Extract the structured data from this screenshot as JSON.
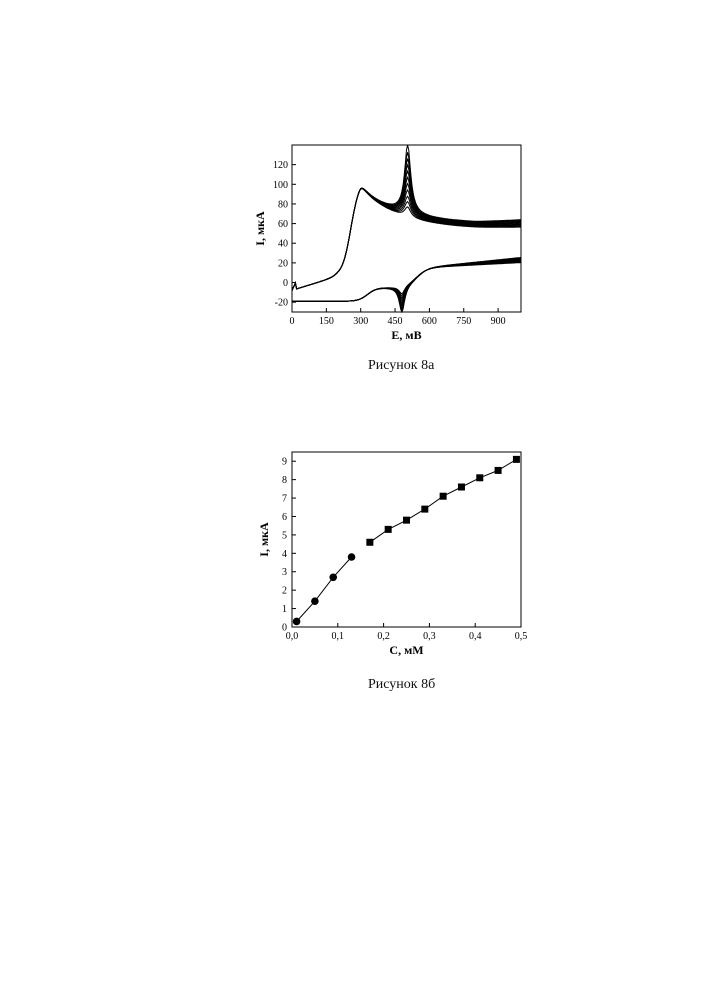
{
  "figures": [
    {
      "caption": "Рисунок 8а"
    },
    {
      "caption": "Рисунок 8б"
    }
  ],
  "chart_data": [
    {
      "type": "line",
      "xlabel": "E, мВ",
      "ylabel": "I, мкА",
      "xlim": [
        0,
        1000
      ],
      "ylim": [
        -30,
        140
      ],
      "xticks": [
        "0",
        "150",
        "300",
        "450",
        "600",
        "750",
        "900"
      ],
      "yticks": [
        "-20",
        "0",
        "20",
        "40",
        "60",
        "80",
        "100",
        "120"
      ],
      "grid": false,
      "series_description_peak_heights": {
        "peak2_anodic": [
          70,
          75,
          80,
          86,
          92,
          98,
          104,
          110,
          116,
          122,
          130
        ],
        "peak2_cathodic": [
          -8,
          -10,
          -12,
          -13,
          -15,
          -17,
          -19,
          -21,
          -23,
          -25,
          -27
        ]
      },
      "peak1_anodic_E": 300,
      "peak1_anodic_I": 92,
      "peak2_anodic_E": 505,
      "peak2_cathodic_E": 480,
      "color": "#000000"
    },
    {
      "type": "scatter",
      "xlabel": "С, мМ",
      "ylabel": "I, мкА",
      "xlim": [
        0,
        0.5
      ],
      "ylim": [
        0,
        9.5
      ],
      "xticks": [
        "0,0",
        "0,1",
        "0,2",
        "0,3",
        "0,4",
        "0,5"
      ],
      "yticks": [
        "0",
        "1",
        "2",
        "3",
        "4",
        "5",
        "6",
        "7",
        "8",
        "9"
      ],
      "grid": false,
      "series": [
        {
          "marker": "circle",
          "x": [
            0.01,
            0.05,
            0.09,
            0.13
          ],
          "y": [
            0.3,
            1.4,
            2.7,
            3.8
          ]
        },
        {
          "marker": "square",
          "x": [
            0.17,
            0.21,
            0.25,
            0.29,
            0.33,
            0.37,
            0.41,
            0.45,
            0.49
          ],
          "y": [
            4.6,
            5.3,
            5.8,
            6.4,
            7.1,
            7.6,
            8.1,
            8.5,
            9.1
          ]
        }
      ],
      "color": "#000000"
    }
  ]
}
